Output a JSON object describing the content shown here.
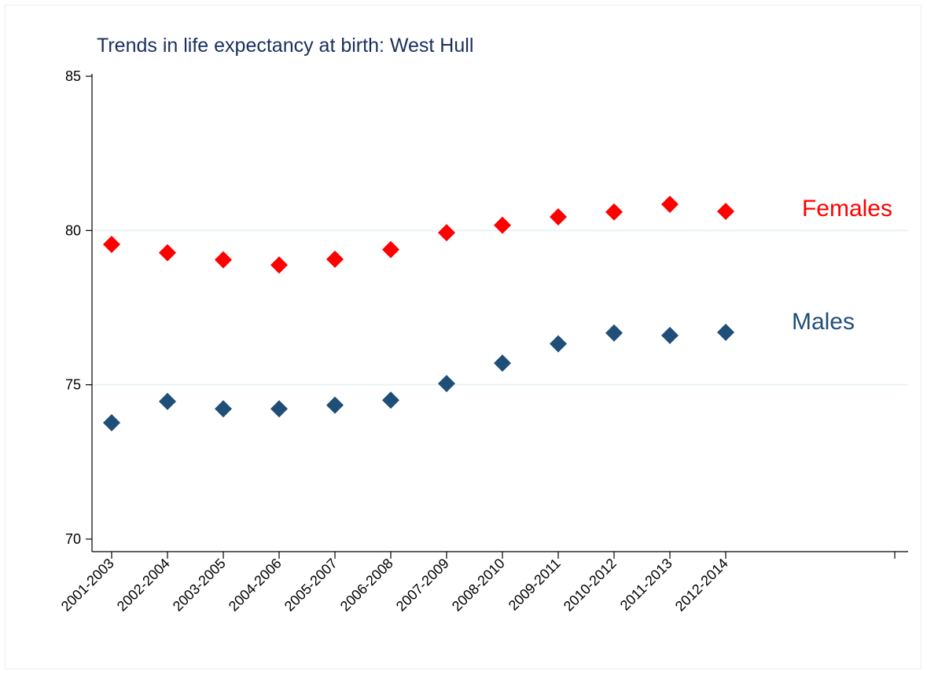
{
  "chart_data": {
    "type": "scatter",
    "title": "Trends in life expectancy at birth: West Hull",
    "xlabel": "",
    "ylabel": "",
    "categories": [
      "2001-2003",
      "2002-2004",
      "2003-2005",
      "2004-2006",
      "2005-2007",
      "2006-2008",
      "2007-2009",
      "2008-2010",
      "2009-2011",
      "2010-2012",
      "2011-2013",
      "2012-2014"
    ],
    "ylim": [
      70,
      85
    ],
    "yticks": [
      70,
      75,
      80,
      85
    ],
    "grid": true,
    "marker": "diamond",
    "series": [
      {
        "name": "Females",
        "color": "#ff0000",
        "values": [
          79.55,
          79.28,
          79.05,
          78.88,
          79.07,
          79.38,
          79.93,
          80.17,
          80.44,
          80.6,
          80.85,
          80.62
        ]
      },
      {
        "name": "Males",
        "color": "#1f4e79",
        "values": [
          73.77,
          74.46,
          74.22,
          74.22,
          74.34,
          74.5,
          75.04,
          75.7,
          76.33,
          76.68,
          76.6,
          76.7
        ]
      }
    ]
  },
  "colors": {
    "grid": "#eaf2f3",
    "axis": "#000000",
    "title": "#1a2f5e"
  }
}
